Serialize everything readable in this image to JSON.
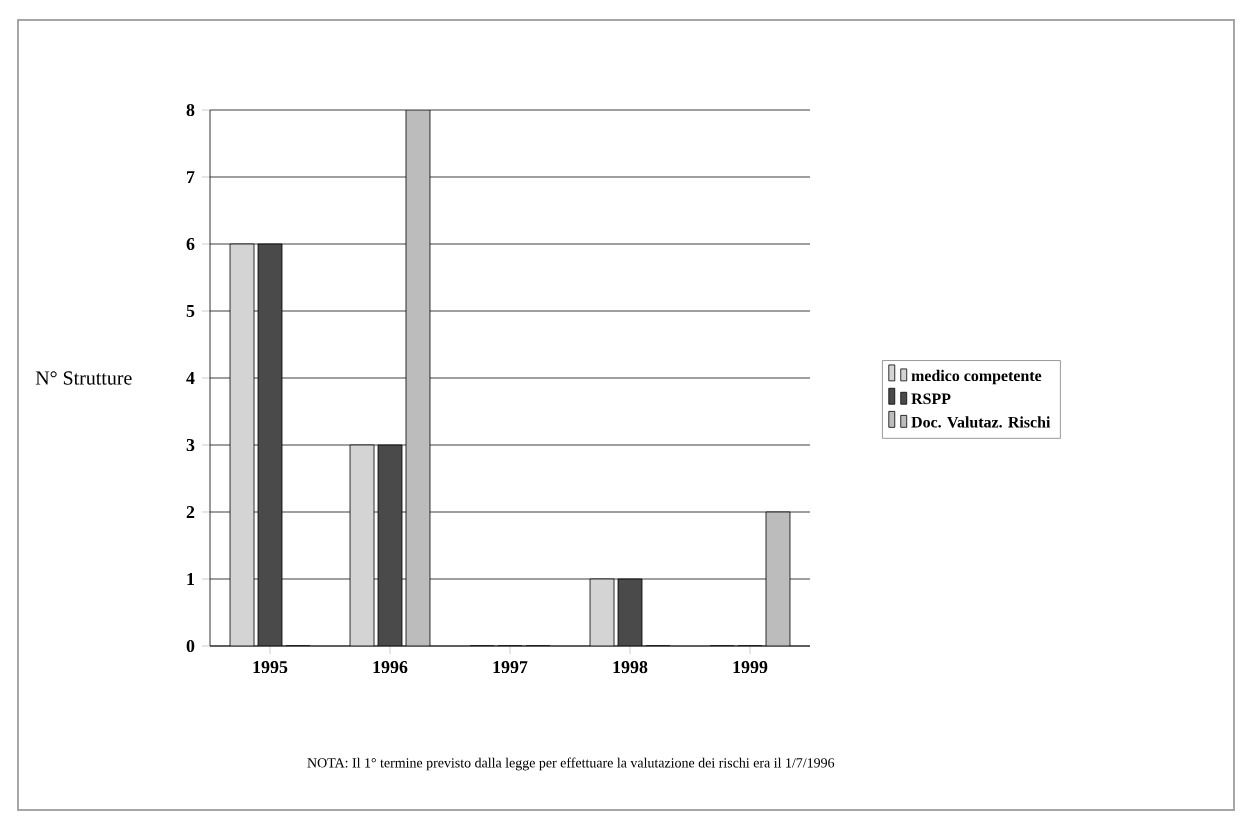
{
  "chart_data": {
    "type": "bar",
    "ylabel": "N° Strutture",
    "categories": [
      "1995",
      "1996",
      "1997",
      "1998",
      "1999"
    ],
    "series": [
      {
        "name": "medico competente",
        "color": "#d4d4d4",
        "values": [
          6,
          3,
          0,
          1,
          0
        ]
      },
      {
        "name": "RSPP",
        "color": "#4a4a4a",
        "values": [
          6,
          3,
          0,
          1,
          0
        ]
      },
      {
        "name": "Doc. Valutaz. Rischi",
        "color": "#bcbcbc",
        "values": [
          0,
          8,
          0,
          0,
          2
        ]
      }
    ],
    "ylim": [
      0,
      8
    ],
    "yticks": [
      0,
      1,
      2,
      3,
      4,
      5,
      6,
      7,
      8
    ],
    "grid": "y",
    "legend": "right",
    "annotations": [
      "NOTA: Il 1° termine previsto dalla legge per effettuare la valutazione dei rischi era il 1/7/1996"
    ]
  }
}
